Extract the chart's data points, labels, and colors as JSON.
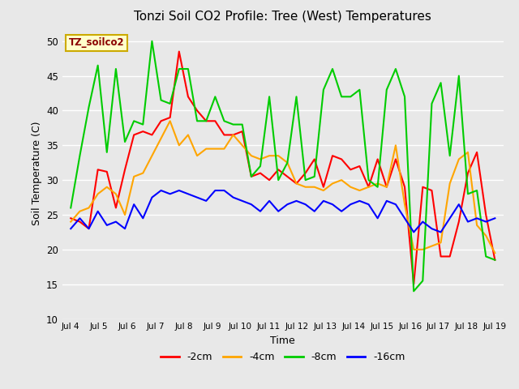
{
  "title": "Tonzi Soil CO2 Profile: Tree (West) Temperatures",
  "xlabel": "Time",
  "ylabel": "Soil Temperature (C)",
  "ylim": [
    10,
    52
  ],
  "yticks": [
    10,
    15,
    20,
    25,
    30,
    35,
    40,
    45,
    50
  ],
  "plot_bg": "#e8e8e8",
  "fig_bg": "#e8e8e8",
  "legend_label": "TZ_soilco2",
  "legend_text_color": "#8b0000",
  "legend_box_facecolor": "#ffffcc",
  "legend_box_edgecolor": "#ccaa00",
  "series_labels": [
    "-2cm",
    "-4cm",
    "-8cm",
    "-16cm"
  ],
  "series_colors": [
    "#ff0000",
    "#ffa500",
    "#00cc00",
    "#0000ff"
  ],
  "line_width": 1.5,
  "x_labels": [
    "Jul 4",
    "Jul 5",
    "Jul 6",
    "Jul 7",
    "Jul 8",
    "Jul 9",
    "Jul 10",
    "Jul 11",
    "Jul 12",
    "Jul 13",
    "Jul 14",
    "Jul 15",
    "Jul 16",
    "Jul 17",
    "Jul 18",
    "Jul 19"
  ],
  "data_2cm": [
    24.5,
    24.0,
    23.0,
    31.5,
    31.2,
    26.0,
    31.5,
    36.5,
    37.0,
    36.5,
    38.5,
    39.0,
    48.5,
    42.0,
    40.0,
    38.5,
    38.5,
    36.5,
    36.5,
    37.0,
    30.5,
    31.0,
    30.0,
    31.5,
    30.5,
    29.5,
    31.0,
    33.0,
    29.0,
    33.5,
    33.0,
    31.5,
    32.0,
    29.0,
    33.0,
    29.0,
    33.0,
    29.0,
    15.0,
    29.0,
    28.5,
    19.0,
    19.0,
    24.0,
    31.0,
    34.0,
    25.0,
    18.5
  ],
  "data_4cm": [
    24.0,
    25.5,
    26.0,
    28.0,
    29.0,
    28.0,
    25.0,
    30.5,
    31.0,
    33.5,
    36.0,
    38.5,
    35.0,
    36.5,
    33.5,
    34.5,
    34.5,
    34.5,
    36.5,
    35.0,
    33.5,
    33.0,
    33.5,
    33.5,
    32.5,
    29.5,
    29.0,
    29.0,
    28.5,
    29.5,
    30.0,
    29.0,
    28.5,
    29.0,
    29.5,
    29.0,
    35.0,
    26.5,
    20.0,
    20.0,
    20.5,
    21.0,
    29.5,
    33.0,
    34.0,
    23.5,
    22.0,
    19.5
  ],
  "data_8cm": [
    26.0,
    33.5,
    40.5,
    46.5,
    34.0,
    46.0,
    35.5,
    38.5,
    38.0,
    50.0,
    41.5,
    41.0,
    46.0,
    46.0,
    38.5,
    38.5,
    42.0,
    38.5,
    38.0,
    38.0,
    30.5,
    32.0,
    42.0,
    30.0,
    32.5,
    42.0,
    30.0,
    30.5,
    43.0,
    46.0,
    42.0,
    42.0,
    43.0,
    30.0,
    29.0,
    43.0,
    46.0,
    42.0,
    14.0,
    15.5,
    41.0,
    44.0,
    33.5,
    45.0,
    28.0,
    28.5,
    19.0,
    18.5
  ],
  "data_16cm": [
    23.0,
    24.5,
    23.0,
    25.5,
    23.5,
    24.0,
    23.0,
    26.5,
    24.5,
    27.5,
    28.5,
    28.0,
    28.5,
    28.0,
    27.5,
    27.0,
    28.5,
    28.5,
    27.5,
    27.0,
    26.5,
    25.5,
    27.0,
    25.5,
    26.5,
    27.0,
    26.5,
    25.5,
    27.0,
    26.5,
    25.5,
    26.5,
    27.0,
    26.5,
    24.5,
    27.0,
    26.5,
    24.5,
    22.5,
    24.0,
    23.0,
    22.5,
    24.5,
    26.5,
    24.0,
    24.5,
    24.0,
    24.5
  ]
}
